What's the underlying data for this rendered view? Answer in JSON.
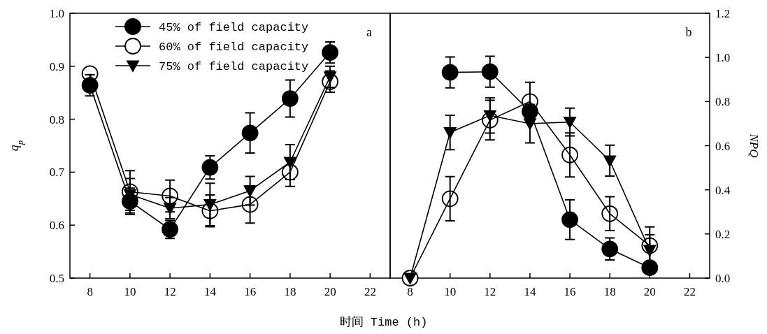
{
  "chart_data": [
    {
      "type": "line",
      "xlabel": "时间 Time (h)",
      "ylabel": "q$_{p}$",
      "annotations": [
        "a"
      ],
      "x": [
        8,
        10,
        12,
        14,
        16,
        18,
        20
      ],
      "xlim": [
        7,
        23
      ],
      "xticks": [
        8,
        10,
        12,
        14,
        16,
        18,
        20,
        22
      ],
      "ylim": [
        0.5,
        1.0
      ],
      "yticks": [
        0.5,
        0.6,
        0.7,
        0.8,
        0.9,
        {
          "value": 1.0,
          "label": "1.0"
        }
      ],
      "legend": "top left",
      "line_style": "solid",
      "series": [
        {
          "name": "45% of field capacity",
          "color": "#000000",
          "marker": "circle",
          "values": [
            0.864,
            0.645,
            0.592,
            0.709,
            0.774,
            0.839,
            0.926
          ],
          "errors": [
            0.02,
            0.025,
            0.017,
            0.022,
            0.038,
            0.035,
            0.02
          ]
        },
        {
          "name": "60% of field capacity",
          "color": "#ffffff",
          "marker": "circle",
          "values": [
            0.886,
            0.663,
            0.655,
            0.627,
            0.639,
            0.7,
            0.871
          ],
          "errors": [
            null,
            0.04,
            0.03,
            0.03,
            0.035,
            0.027,
            0.02
          ]
        },
        {
          "name": "75% of field capacity",
          "color": "#000000",
          "marker": "triangle",
          "values": [
            null,
            0.658,
            0.632,
            0.639,
            0.665,
            0.719,
            0.88
          ],
          "errors": [
            null,
            0.03,
            0.02,
            0.04,
            0.027,
            0.033,
            0.02
          ]
        }
      ]
    },
    {
      "type": "line",
      "y2label": "NPQ",
      "annotations": [
        "b"
      ],
      "x": [
        8,
        10,
        12,
        14,
        16,
        18,
        20
      ],
      "xlim": [
        7,
        23
      ],
      "xticks": [
        8,
        10,
        12,
        14,
        16,
        18,
        20,
        22
      ],
      "y2lim": [
        0,
        1.2
      ],
      "y2ticks": [
        {
          "value": 0,
          "label": "0.0"
        },
        0.2,
        0.4,
        0.6,
        0.8,
        {
          "value": 1.0,
          "label": "1.0"
        },
        1.2
      ],
      "legend": false,
      "line_style": "solid",
      "series": [
        {
          "color": "#000000",
          "marker": "circle",
          "axis": "y2",
          "values": [
            null,
            0.932,
            0.935,
            0.755,
            0.265,
            0.132,
            0.047
          ],
          "errors": [
            null,
            0.07,
            0.07,
            null,
            0.09,
            0.05,
            null
          ]
        },
        {
          "color": "#ffffff",
          "marker": "circle",
          "axis": "y2",
          "values": [
            0,
            0.36,
            0.716,
            0.8,
            0.558,
            0.292,
            0.147
          ],
          "errors": [
            null,
            0.1,
            0.09,
            0.087,
            0.1,
            0.077,
            0.085
          ]
        },
        {
          "color": "#000000",
          "marker": "triangle",
          "axis": "y2",
          "values": [
            0,
            0.66,
            0.737,
            0.7,
            0.707,
            0.532,
            0.126
          ],
          "errors": [
            null,
            0.078,
            0.08,
            0.087,
            0.063,
            0.07,
            0.07
          ]
        }
      ]
    }
  ]
}
